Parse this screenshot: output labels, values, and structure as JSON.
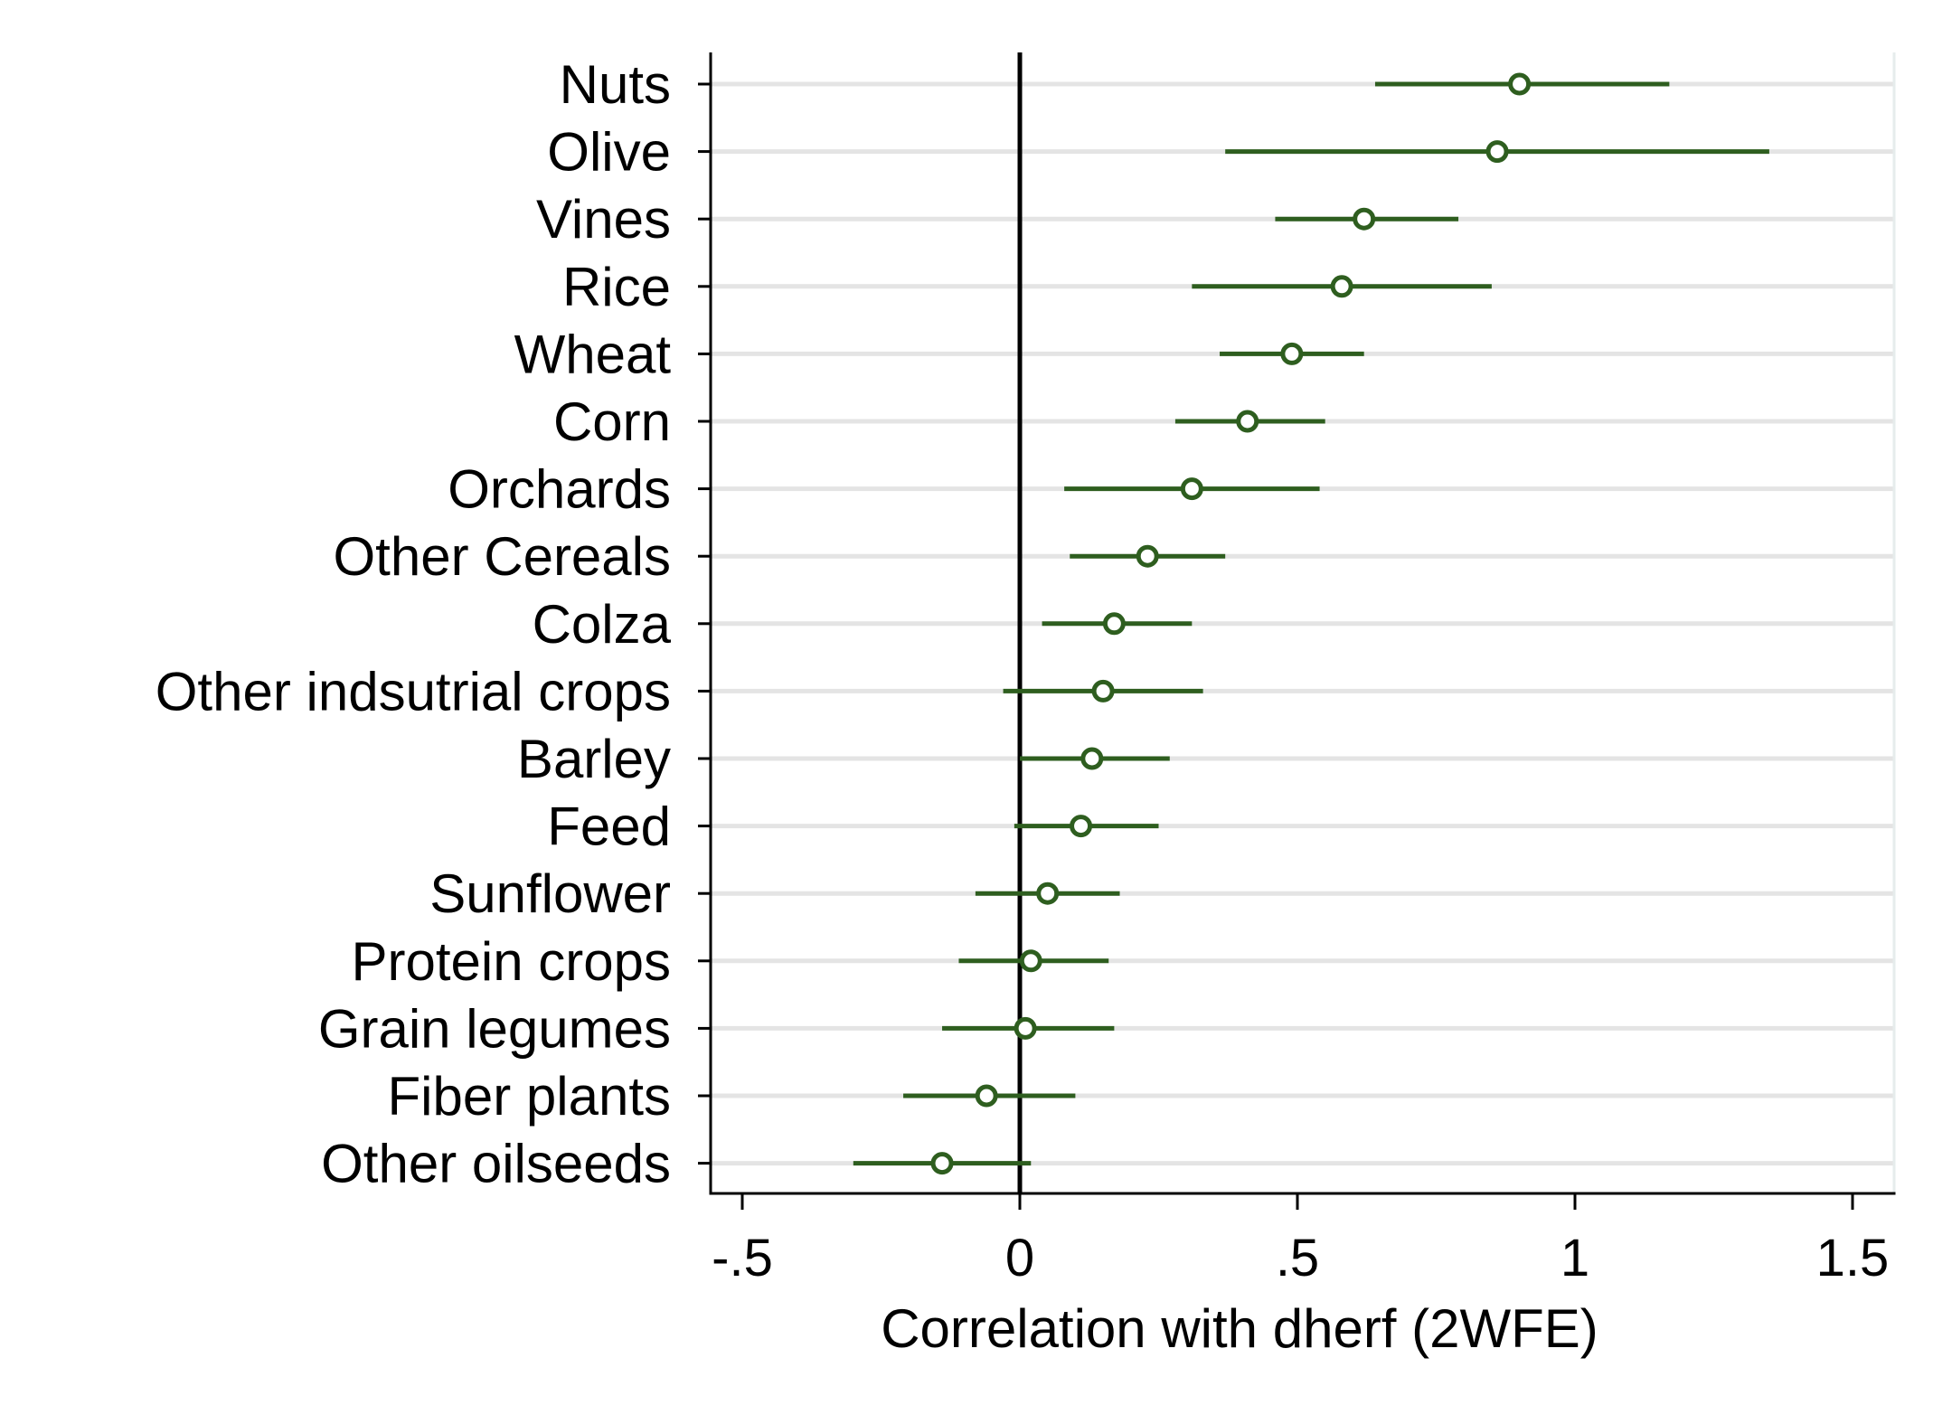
{
  "chart_data": {
    "type": "scatter",
    "subtype": "coefficient-plot-with-confidence-intervals",
    "title": "",
    "xlabel": "Correlation with dherf (2WFE)",
    "ylabel": "",
    "xlim": [
      -0.5,
      1.5
    ],
    "x_ticks": [
      -0.5,
      0,
      0.5,
      1,
      1.5
    ],
    "x_tick_labels": [
      "-.5",
      "0",
      ".5",
      "1",
      "1.5"
    ],
    "reference_line_x": 0,
    "grid": "horizontal",
    "legend": "none",
    "categories": [
      "Nuts",
      "Olive",
      "Vines",
      "Rice",
      "Wheat",
      "Corn",
      "Orchards",
      "Other Cereals",
      "Colza",
      "Other indsutrial crops",
      "Barley",
      "Feed",
      "Sunflower",
      "Protein crops",
      "Grain legumes",
      "Fiber plants",
      "Other oilseeds"
    ],
    "estimates": [
      0.9,
      0.86,
      0.62,
      0.58,
      0.49,
      0.41,
      0.31,
      0.23,
      0.17,
      0.15,
      0.13,
      0.11,
      0.05,
      0.02,
      0.01,
      -0.06,
      -0.14
    ],
    "ci_low": [
      0.64,
      0.37,
      0.46,
      0.31,
      0.36,
      0.28,
      0.08,
      0.09,
      0.04,
      -0.03,
      0.0,
      -0.01,
      -0.08,
      -0.11,
      -0.14,
      -0.21,
      -0.3
    ],
    "ci_high": [
      1.17,
      1.35,
      0.79,
      0.85,
      0.62,
      0.55,
      0.54,
      0.37,
      0.31,
      0.33,
      0.27,
      0.25,
      0.18,
      0.16,
      0.17,
      0.1,
      0.02
    ],
    "colors": {
      "marker": "#2e5e1f",
      "ci_line": "#2e5e1f",
      "grid": "#e4e4e4",
      "axis": "#000000",
      "reference_line": "#000000"
    }
  }
}
